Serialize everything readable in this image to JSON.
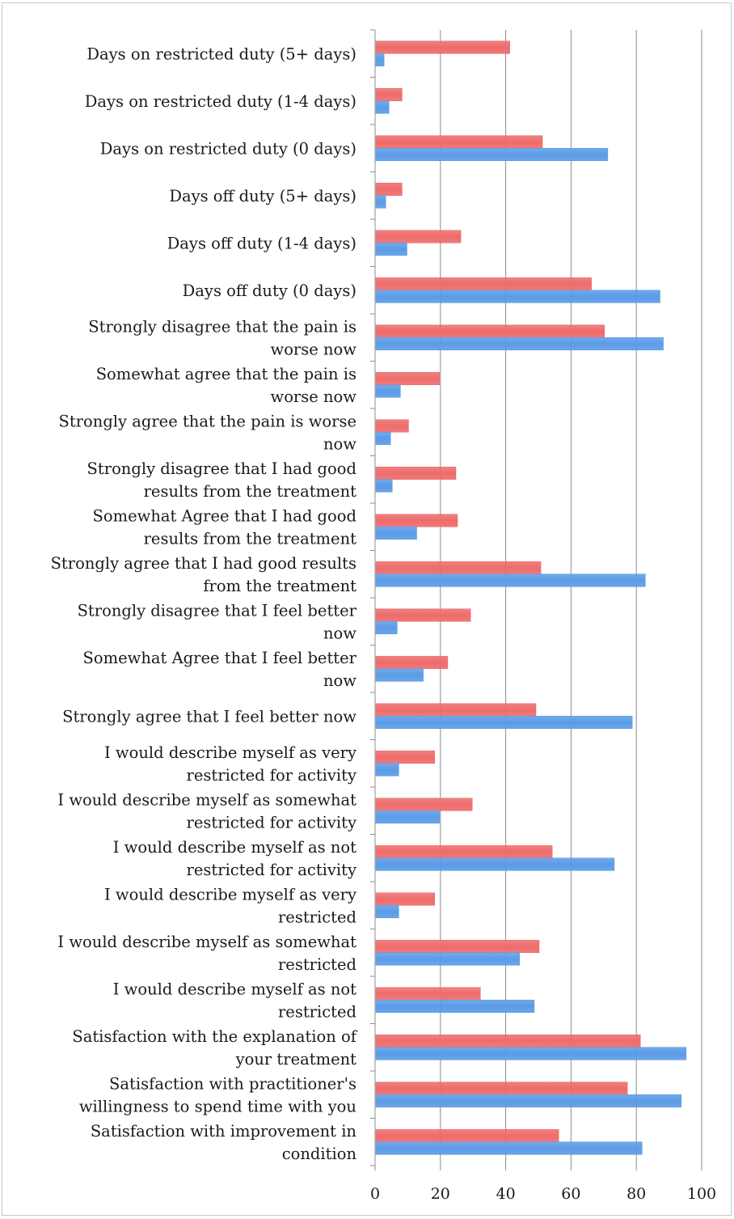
{
  "chart_data": {
    "type": "bar",
    "orientation": "horizontal",
    "categories": [
      [
        "Days on restricted duty (5+ days)"
      ],
      [
        "Days on restricted duty (1-4 days)"
      ],
      [
        "Days on restricted duty (0 days)"
      ],
      [
        "Days off duty (5+ days)"
      ],
      [
        "Days off duty (1-4 days)"
      ],
      [
        "Days off duty (0 days)"
      ],
      [
        "Strongly disagree that the pain is",
        "worse now"
      ],
      [
        "Somewhat agree that the pain is",
        "worse now"
      ],
      [
        "Strongly agree that the pain is worse",
        "now"
      ],
      [
        "Strongly disagree that I had good",
        "results from the treatment"
      ],
      [
        "Somewhat Agree that I had good",
        "results from the treatment"
      ],
      [
        "Strongly agree that I had good results",
        "from the treatment"
      ],
      [
        "Strongly disagree that I feel better",
        "now"
      ],
      [
        "Somewhat Agree that I feel better",
        "now"
      ],
      [
        "Strongly agree that I feel better now"
      ],
      [
        "I would describe myself as very",
        "restricted for activity"
      ],
      [
        "I would describe myself as somewhat",
        "restricted for activity"
      ],
      [
        "I would describe myself as not",
        "restricted for activity"
      ],
      [
        "I would describe myself as very",
        "restricted"
      ],
      [
        "I would describe myself as somewhat",
        "restricted"
      ],
      [
        "I would describe myself as not",
        "restricted"
      ],
      [
        "Satisfaction with the explanation of",
        "your treatment"
      ],
      [
        "Satisfaction with practitioner's",
        "willingness to spend time with you"
      ],
      [
        "Satisfaction with improvement in",
        "condition"
      ]
    ],
    "series": [
      {
        "color": "#ee6b6b",
        "values": [
          41,
          8,
          51,
          8,
          26,
          66,
          70,
          19.5,
          10,
          24.5,
          25,
          50.5,
          29,
          22,
          49,
          18,
          29.5,
          54,
          18,
          50,
          32,
          81,
          77,
          56
        ]
      },
      {
        "color": "#5b9be6",
        "values": [
          2.5,
          4,
          71,
          3,
          9.5,
          87,
          88,
          7.5,
          4.5,
          5,
          12.5,
          82.5,
          6.5,
          14.5,
          78.5,
          7,
          19.5,
          73,
          7,
          44,
          48.5,
          95,
          93.5,
          81.5
        ]
      }
    ],
    "xlim": [
      0,
      100
    ],
    "xticks": [
      "0",
      "20",
      "40",
      "60",
      "80",
      "100"
    ],
    "grid": true
  }
}
